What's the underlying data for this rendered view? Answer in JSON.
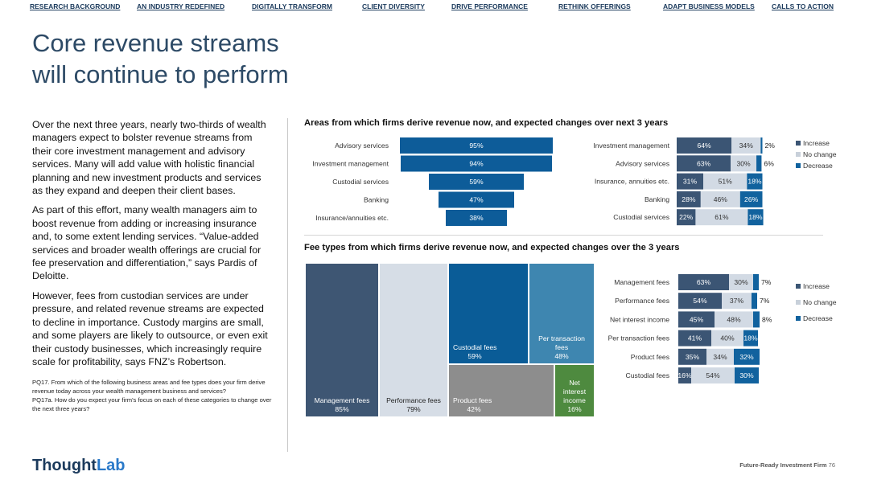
{
  "nav": [
    "RESEARCH BACKGROUND",
    "AN INDUSTRY REDEFINED",
    "DIGITALLY TRANSFORM",
    "CLIENT DIVERSITY",
    "DRIVE PERFORMANCE",
    "RETHINK OFFERINGS",
    "ADAPT BUSINESS MODELS",
    "CALLS TO ACTION"
  ],
  "title_line1": "Core revenue streams",
  "title_line2": "will continue to perform",
  "body": {
    "p1": "Over the next three years, nearly two-thirds of wealth managers expect to bolster revenue streams from their core investment management and advisory services. Many will add value with holistic financial planning and new investment products and services as they expand and deepen their client bases.",
    "p2": "As part of this effort, many wealth managers aim to boost revenue from adding or increasing insurance and, to some extent lending services. “Value-added services and broader wealth offerings are crucial for fee preservation and differentiation,” says Pardis of Deloitte.",
    "p3": "However, fees from custodian services are under pressure, and related revenue streams are expected to decline in importance. Custody margins are small, and some players are likely to outsource, or even exit their custody businesses, which increasingly require scale for profitability, says FNZ’s Robertson."
  },
  "footnote": {
    "q1": "PQ17. From which of the following business areas and fee types does your firm derive revenue today across your wealth management business and services?",
    "q2": "PQ17a. How do you expect your firm's focus on each of these categories to change over the next three years?"
  },
  "colors": {
    "navy": "#1b3a5c",
    "increase": "#3b5574",
    "no_change": "#d2dae4",
    "decrease": "#11629e",
    "funnel": "#0d5c99",
    "tm_slate": "#3e5673",
    "tm_light": "#d6dde6",
    "tm_blue": "#0a5c97",
    "tm_teal": "#3e86b0",
    "tm_gray": "#8d8d8d",
    "tm_green": "#4e8a3f"
  },
  "chart_data": [
    {
      "type": "bar",
      "title": "Areas from which firms derive revenue now, and expected changes over next 3 years",
      "categories": [
        "Advisory services",
        "Investment management",
        "Custodial services",
        "Banking",
        "Insurance/annuities etc."
      ],
      "values": [
        95,
        94,
        59,
        47,
        38
      ],
      "labels": [
        "95%",
        "94%",
        "59%",
        "47%",
        "38%"
      ],
      "xlim": [
        0,
        100
      ]
    },
    {
      "type": "bar",
      "stacked": true,
      "legend": [
        "Increase",
        "No change",
        "Decrease"
      ],
      "legend_position": "right",
      "categories": [
        "Investment management",
        "Advisory services",
        "Insurance, annuities etc.",
        "Banking",
        "Custodial services"
      ],
      "series": [
        {
          "name": "Increase",
          "values": [
            64,
            63,
            31,
            28,
            22
          ],
          "labels": [
            "64%",
            "63%",
            "31%",
            "28%",
            "22%"
          ]
        },
        {
          "name": "No change",
          "values": [
            34,
            30,
            51,
            46,
            61
          ],
          "labels": [
            "34%",
            "30%",
            "51%",
            "46%",
            "61%"
          ]
        },
        {
          "name": "Decrease",
          "values": [
            2,
            6,
            18,
            26,
            18
          ],
          "labels": [
            "2%",
            "6%",
            "18%",
            "26%",
            "18%"
          ]
        }
      ]
    },
    {
      "type": "treemap",
      "title": "Fee types from which firms derive revenue now, and expected changes over the 3 years",
      "items": [
        {
          "name": "Management fees",
          "value": 85,
          "label": "85%"
        },
        {
          "name": "Performance fees",
          "value": 79,
          "label": "79%"
        },
        {
          "name": "Custodial fees",
          "value": 59,
          "label": "59%"
        },
        {
          "name": "Per transaction fees",
          "value": 48,
          "label": "48%",
          "lines": [
            "Per transaction",
            "fees"
          ]
        },
        {
          "name": "Product fees",
          "value": 42,
          "label": "42%"
        },
        {
          "name": "Net interest income",
          "value": 16,
          "label": "16%",
          "lines": [
            "Net",
            "interest",
            "income"
          ]
        }
      ]
    },
    {
      "type": "bar",
      "stacked": true,
      "legend": [
        "Increase",
        "No change",
        "Decrease"
      ],
      "legend_position": "right",
      "categories": [
        "Management fees",
        "Performance fees",
        "Net interest income",
        "Per transaction fees",
        "Product fees",
        "Custodial fees"
      ],
      "series": [
        {
          "name": "Increase",
          "values": [
            63,
            54,
            45,
            41,
            35,
            16
          ],
          "labels": [
            "63%",
            "54%",
            "45%",
            "41%",
            "35%",
            "16%"
          ]
        },
        {
          "name": "No change",
          "values": [
            30,
            37,
            48,
            40,
            34,
            54
          ],
          "labels": [
            "30%",
            "37%",
            "48%",
            "40%",
            "34%",
            "54%"
          ]
        },
        {
          "name": "Decrease",
          "values": [
            7,
            7,
            8,
            18,
            32,
            30
          ],
          "labels": [
            "7%",
            "7%",
            "8%",
            "18%",
            "32%",
            "30%"
          ]
        }
      ]
    }
  ],
  "logo": {
    "part1": "Thought",
    "part2": "Lab"
  },
  "footer": {
    "label": "Future-Ready Investment Firm",
    "page": "76"
  }
}
